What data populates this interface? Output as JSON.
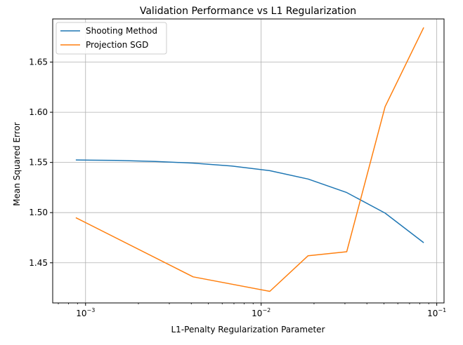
{
  "chart_data": {
    "type": "line",
    "title": "Validation Performance vs L1 Regularization",
    "xlabel": "L1-Penalty Regularization Parameter",
    "ylabel": "Mean Squared Error",
    "xscale": "log",
    "xlim": [
      0.00065,
      0.11
    ],
    "ylim": [
      1.41,
      1.693
    ],
    "grid": true,
    "legend_position": "upper-left",
    "xticks": [
      {
        "value": 0.001,
        "base": "10",
        "exp": "−3"
      },
      {
        "value": 0.01,
        "base": "10",
        "exp": "−2"
      },
      {
        "value": 0.1,
        "base": "10",
        "exp": "−1"
      }
    ],
    "yticks": [
      {
        "value": 1.45,
        "label": "1.45"
      },
      {
        "value": 1.5,
        "label": "1.50"
      },
      {
        "value": 1.55,
        "label": "1.55"
      },
      {
        "value": 1.6,
        "label": "1.60"
      },
      {
        "value": 1.65,
        "label": "1.65"
      }
    ],
    "series": [
      {
        "name": "Shooting Method",
        "color": "#1f77b4",
        "x": [
          0.00088,
          0.0015,
          0.0025,
          0.0041,
          0.0068,
          0.0112,
          0.0185,
          0.0307,
          0.0508,
          0.0843
        ],
        "y": [
          1.5525,
          1.552,
          1.551,
          1.5493,
          1.5465,
          1.5418,
          1.5335,
          1.52,
          1.4995,
          1.47
        ]
      },
      {
        "name": "Projection SGD",
        "color": "#ff7f0e",
        "x": [
          0.00088,
          0.0041,
          0.0112,
          0.0185,
          0.0307,
          0.0508,
          0.0843
        ],
        "y": [
          1.495,
          1.436,
          1.4215,
          1.457,
          1.461,
          1.6055,
          1.6845
        ]
      }
    ]
  }
}
